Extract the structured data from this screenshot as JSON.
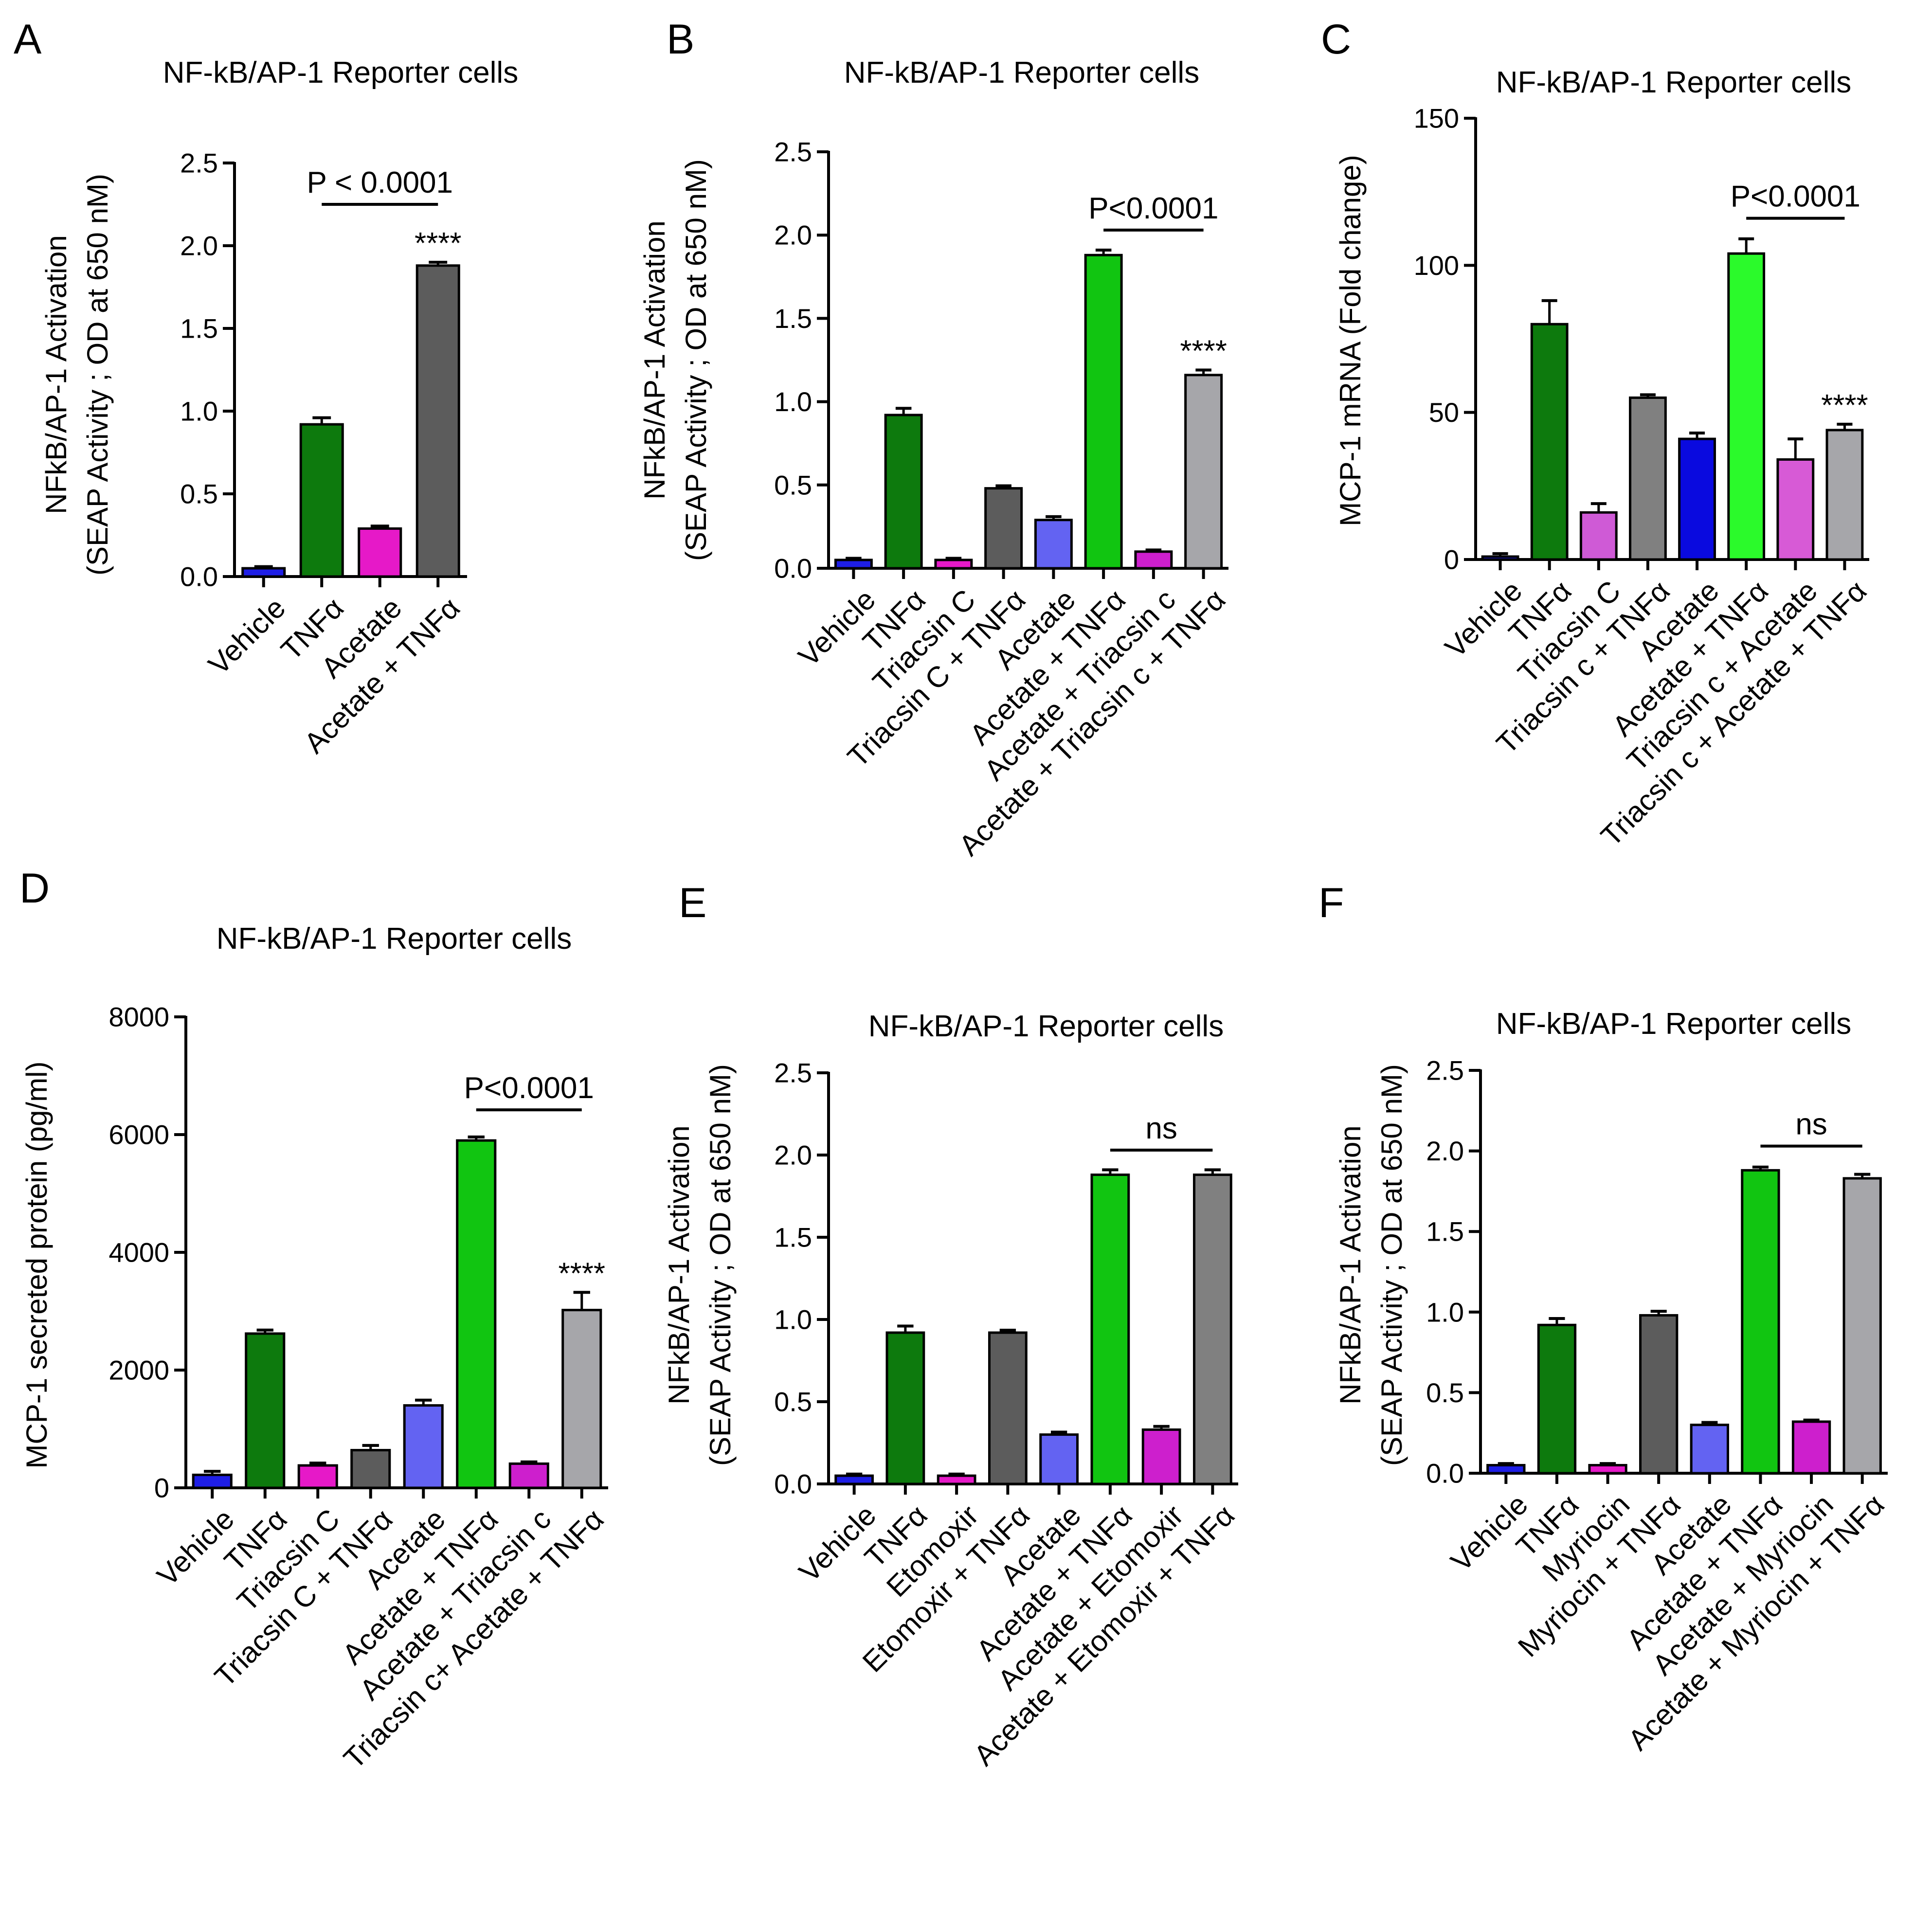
{
  "figure": {
    "background": "#ffffff"
  },
  "chart_data": [
    {
      "panel": "A",
      "type": "bar",
      "title": "NF-kB/AP-1 Reporter cells",
      "ylabel_lines": [
        "NFkB/AP-1 Activation",
        "(SEAP Activity ; OD at 650 nM)"
      ],
      "ylim": [
        0,
        2.5
      ],
      "yticks": [
        0.0,
        0.5,
        1.0,
        1.5,
        2.0,
        2.5
      ],
      "ytick_labels": [
        "0.0",
        "0.5",
        "1.0",
        "1.5",
        "2.0",
        "2.5"
      ],
      "categories": [
        "Vehicle",
        "TNFα",
        "Acetate",
        "Acetate + TNFα"
      ],
      "values": [
        0.05,
        0.92,
        0.29,
        1.88
      ],
      "errors": [
        0.01,
        0.04,
        0.015,
        0.02
      ],
      "colors": [
        "#1e1ee6",
        "#0d7a0d",
        "#e619c8",
        "#5c5c5c"
      ],
      "stars": [
        {
          "bar": 3,
          "text": "****"
        }
      ],
      "brackets": [
        {
          "from": 1,
          "to": 3,
          "y": 2.25,
          "text": "P < 0.0001"
        }
      ]
    },
    {
      "panel": "B",
      "type": "bar",
      "title": "NF-kB/AP-1 Reporter cells",
      "ylabel_lines": [
        "NFkB/AP-1 Activation",
        "(SEAP Activity ; OD at 650 nM)"
      ],
      "ylim": [
        0,
        2.5
      ],
      "yticks": [
        0.0,
        0.5,
        1.0,
        1.5,
        2.0,
        2.5
      ],
      "ytick_labels": [
        "0.0",
        "0.5",
        "1.0",
        "1.5",
        "2.0",
        "2.5"
      ],
      "categories": [
        "Vehicle",
        "TNFα",
        "Triacsin C",
        "Triacsin C + TNFα",
        "Acetate",
        "Acetate + TNFα",
        "Acetate + Triacsin c",
        "Acetate + Triacsin c + TNFα"
      ],
      "values": [
        0.05,
        0.92,
        0.05,
        0.48,
        0.29,
        1.88,
        0.1,
        1.16
      ],
      "errors": [
        0.01,
        0.04,
        0.01,
        0.015,
        0.02,
        0.03,
        0.01,
        0.03
      ],
      "colors": [
        "#1e1ee6",
        "#0d7a0d",
        "#e619c8",
        "#5c5c5c",
        "#6363f2",
        "#11c511",
        "#cd1fcd",
        "#a6a6aa"
      ],
      "stars": [
        {
          "bar": 7,
          "text": "****"
        }
      ],
      "brackets": [
        {
          "from": 5,
          "to": 7,
          "y": 2.03,
          "text": "P<0.0001"
        }
      ]
    },
    {
      "panel": "C",
      "type": "bar",
      "title": "NF-kB/AP-1 Reporter cells",
      "ylabel_lines": [
        "MCP-1 mRNA (Fold change)"
      ],
      "ylim": [
        0,
        150
      ],
      "yticks": [
        0,
        50,
        100,
        150
      ],
      "ytick_labels": [
        "0",
        "50",
        "100",
        "150"
      ],
      "categories": [
        "Vehicle",
        "TNFα",
        "Triacsin C",
        "Triacsin c + TNFα",
        "Acetate",
        "Acetate + TNFα",
        "Triacsin c + Acetate",
        "Triacsin c + Acetate + TNFα"
      ],
      "values": [
        1,
        80,
        16,
        55,
        41,
        104,
        34,
        44
      ],
      "errors": [
        1,
        8,
        3,
        1,
        2,
        5,
        7,
        2
      ],
      "colors": [
        "#1e1ee6",
        "#0d7a0d",
        "#cf5ad6",
        "#808080",
        "#0a0adf",
        "#2bfa2b",
        "#d75ad6",
        "#a6a6aa"
      ],
      "stars": [
        {
          "bar": 7,
          "text": "****"
        }
      ],
      "brackets": [
        {
          "from": 5,
          "to": 7,
          "y": 116,
          "text": "P<0.0001"
        }
      ]
    },
    {
      "panel": "D",
      "type": "bar",
      "title": "NF-kB/AP-1 Reporter cells",
      "ylabel_lines": [
        "MCP-1  secreted  protein (pg/ml)"
      ],
      "ylim": [
        0,
        8000
      ],
      "yticks": [
        0,
        2000,
        4000,
        6000,
        8000
      ],
      "ytick_labels": [
        "0",
        "2000",
        "4000",
        "6000",
        "8000"
      ],
      "categories": [
        "Vehicle",
        "TNFα",
        "Triacsin C",
        "Triacsin C + TNFα",
        "Acetate",
        "Acetate + TNFα",
        "Acetate + Triacsin c",
        "Triacsin c+ Acetate  + TNFα"
      ],
      "values": [
        220,
        2620,
        380,
        640,
        1400,
        5900,
        410,
        3020
      ],
      "errors": [
        60,
        60,
        40,
        80,
        90,
        60,
        30,
        300
      ],
      "colors": [
        "#1e1ee6",
        "#0d7a0d",
        "#e619c8",
        "#5c5c5c",
        "#6363f2",
        "#11c511",
        "#cd1fcd",
        "#a6a6aa"
      ],
      "stars": [
        {
          "bar": 7,
          "text": "****"
        }
      ],
      "brackets": [
        {
          "from": 5,
          "to": 7,
          "y": 6420,
          "text": "P<0.0001"
        }
      ]
    },
    {
      "panel": "E",
      "type": "bar",
      "title": "NF-kB/AP-1 Reporter cells",
      "ylabel_lines": [
        "NFkB/AP-1 Activation",
        "(SEAP Activity ; OD at 650 nM)"
      ],
      "ylim": [
        0,
        2.5
      ],
      "yticks": [
        0.0,
        0.5,
        1.0,
        1.5,
        2.0,
        2.5
      ],
      "ytick_labels": [
        "0.0",
        "0.5",
        "1.0",
        "1.5",
        "2.0",
        "2.5"
      ],
      "categories": [
        "Vehicle",
        "TNFα",
        "Etomoxir",
        "Etomoxir + TNFα",
        "Acetate",
        "Acetate + TNFα",
        "Acetate + Etomoxir",
        "Acetate + Etomoxir + TNFα"
      ],
      "values": [
        0.05,
        0.92,
        0.05,
        0.92,
        0.3,
        1.88,
        0.33,
        1.88
      ],
      "errors": [
        0.01,
        0.04,
        0.01,
        0.015,
        0.015,
        0.03,
        0.02,
        0.03
      ],
      "colors": [
        "#1e1ee6",
        "#0d7a0d",
        "#e619c8",
        "#5c5c5c",
        "#6363f2",
        "#11c511",
        "#cd1fcd",
        "#808080"
      ],
      "stars": [],
      "brackets": [
        {
          "from": 5,
          "to": 7,
          "y": 2.03,
          "text": "ns"
        }
      ]
    },
    {
      "panel": "F",
      "type": "bar",
      "title": "NF-kB/AP-1 Reporter cells",
      "ylabel_lines": [
        "NFkB/AP-1 Activation",
        "(SEAP Activity ; OD at 650 nM)"
      ],
      "ylim": [
        0,
        2.5
      ],
      "yticks": [
        0.0,
        0.5,
        1.0,
        1.5,
        2.0,
        2.5
      ],
      "ytick_labels": [
        "0.0",
        "0.5",
        "1.0",
        "1.5",
        "2.0",
        "2.5"
      ],
      "categories": [
        "Vehicle",
        "TNFα",
        "Myriocin",
        "Myriocin + TNFα",
        "Acetate",
        "Acetate + TNFα",
        "Acetate + Myriocin",
        "Acetate + Myriocin + TNFα"
      ],
      "values": [
        0.05,
        0.92,
        0.05,
        0.98,
        0.3,
        1.88,
        0.32,
        1.83
      ],
      "errors": [
        0.01,
        0.04,
        0.01,
        0.025,
        0.015,
        0.02,
        0.01,
        0.025
      ],
      "colors": [
        "#1e1ee6",
        "#0d7a0d",
        "#e619c8",
        "#5c5c5c",
        "#6363f2",
        "#11c511",
        "#cd1fcd",
        "#a6a6aa"
      ],
      "stars": [],
      "brackets": [
        {
          "from": 5,
          "to": 7,
          "y": 2.03,
          "text": "ns"
        }
      ]
    }
  ]
}
